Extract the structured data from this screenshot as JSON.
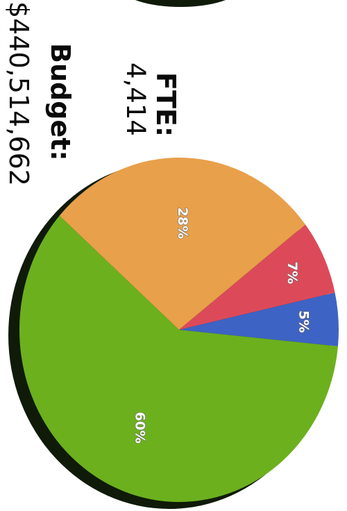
{
  "summary": {
    "fte_label": "FTE:",
    "fte_value": "4,414",
    "budget_label": "Budget:",
    "budget_value": "$440,514,662"
  },
  "chart_data": {
    "type": "pie",
    "title": "",
    "slices": [
      {
        "value": 5,
        "label": "5%",
        "color": "#3d63c4"
      },
      {
        "value": 60,
        "label": "60%",
        "color": "#6cb01e"
      },
      {
        "value": 28,
        "label": "28%",
        "color": "#e8a04a"
      },
      {
        "value": 7,
        "label": "7%",
        "color": "#dc4a5a"
      }
    ],
    "shadow_color": "#0f1a08",
    "legend": "none"
  }
}
